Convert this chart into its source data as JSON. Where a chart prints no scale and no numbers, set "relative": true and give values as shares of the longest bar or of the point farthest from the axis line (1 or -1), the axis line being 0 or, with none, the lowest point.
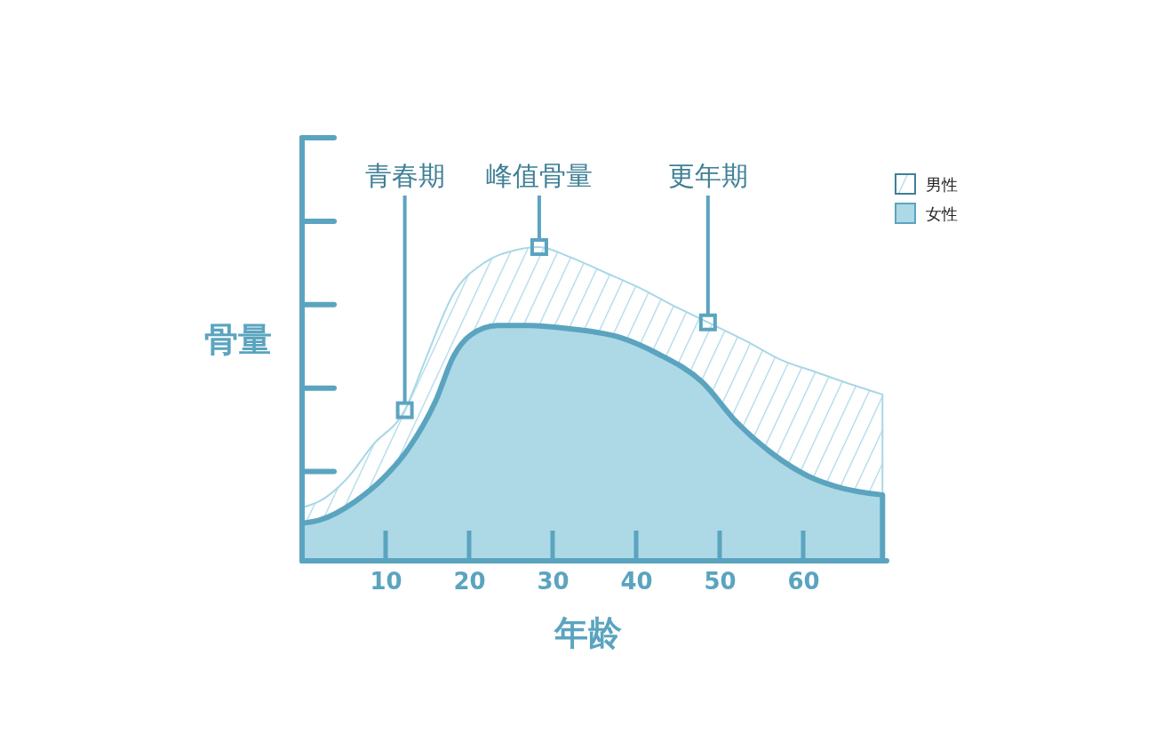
{
  "chart_data": {
    "type": "area",
    "relative": true,
    "xlabel": "年龄",
    "ylabel": "骨量",
    "xlim": [
      0,
      70
    ],
    "xticks": [
      10,
      20,
      30,
      40,
      50,
      60
    ],
    "legend": "top right",
    "series": [
      {
        "name": "男性",
        "color": "#a9d7e6",
        "x": [
          0,
          2.1,
          5.3,
          8.5,
          12.3,
          14.9,
          18.1,
          21.8,
          25.5,
          28.4,
          31.9,
          36.2,
          40.4,
          44.7,
          48.6,
          53.2,
          57.4,
          61.7,
          66,
          69.5
        ],
        "values": [
          0.17,
          0.19,
          0.26,
          0.37,
          0.48,
          0.65,
          0.85,
          0.95,
          0.99,
          1,
          0.97,
          0.92,
          0.87,
          0.81,
          0.76,
          0.7,
          0.64,
          0.6,
          0.56,
          0.53
        ]
      },
      {
        "name": "女性",
        "color": "#add8e6",
        "x": [
          0,
          2.1,
          6.4,
          9.6,
          12.8,
          16,
          18.1,
          20.2,
          23.4,
          27.1,
          31.9,
          38.3,
          42.6,
          47.9,
          52.1,
          56.4,
          60.6,
          64.9,
          69.5
        ],
        "values": [
          0.12,
          0.13,
          0.19,
          0.26,
          0.36,
          0.51,
          0.65,
          0.72,
          0.75,
          0.75,
          0.74,
          0.71,
          0.66,
          0.57,
          0.44,
          0.34,
          0.27,
          0.23,
          0.21
        ]
      }
    ],
    "annotations": [
      {
        "text": "青春期",
        "x": 12.3,
        "y": 0.48
      },
      {
        "text": "峰值骨量",
        "x": 28.4,
        "y": 1
      },
      {
        "text": "更年期",
        "x": 48.6,
        "y": 0.76
      }
    ]
  }
}
